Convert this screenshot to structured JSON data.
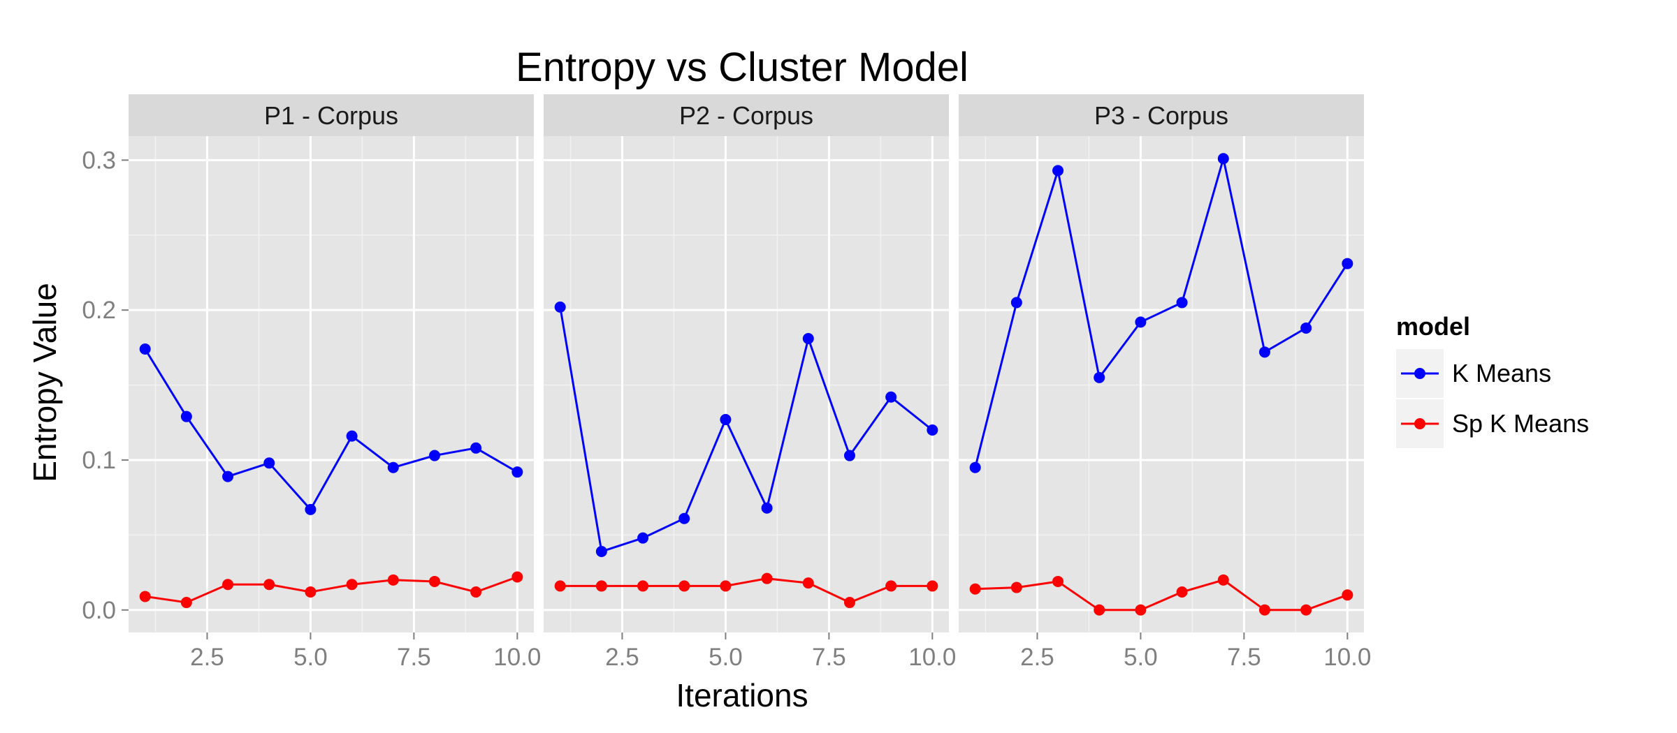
{
  "chart_data": {
    "type": "line",
    "title": "Entropy vs Cluster Model",
    "xlabel": "Iterations",
    "ylabel": "Entropy Value",
    "xlim": [
      0.6,
      10.4
    ],
    "ylim": [
      -0.015,
      0.316
    ],
    "x_ticks": [
      2.5,
      5.0,
      7.5,
      10.0
    ],
    "x_tick_labels": [
      "2.5",
      "5.0",
      "7.5",
      "10.0"
    ],
    "y_ticks": [
      0.0,
      0.1,
      0.2,
      0.3
    ],
    "y_tick_labels": [
      "0.0",
      "0.1",
      "0.2",
      "0.3"
    ],
    "grid": true,
    "legend": {
      "title": "model",
      "position": "right",
      "entries": [
        {
          "label": "K Means",
          "color": "#0000ff"
        },
        {
          "label": "Sp K Means",
          "color": "#ff0000"
        }
      ]
    },
    "colors": {
      "K Means": "#0000ff",
      "Sp K Means": "#ff0000"
    },
    "x": [
      1,
      2,
      3,
      4,
      5,
      6,
      7,
      8,
      9,
      10
    ],
    "panels": [
      {
        "label": "P1 - Corpus",
        "series": [
          {
            "name": "K Means",
            "values": [
              0.174,
              0.129,
              0.089,
              0.098,
              0.067,
              0.116,
              0.095,
              0.103,
              0.108,
              0.092
            ]
          },
          {
            "name": "Sp K Means",
            "values": [
              0.009,
              0.005,
              0.017,
              0.017,
              0.012,
              0.017,
              0.02,
              0.019,
              0.012,
              0.022
            ]
          }
        ]
      },
      {
        "label": "P2 - Corpus",
        "series": [
          {
            "name": "K Means",
            "values": [
              0.202,
              0.039,
              0.048,
              0.061,
              0.127,
              0.068,
              0.181,
              0.103,
              0.142,
              0.12
            ]
          },
          {
            "name": "Sp K Means",
            "values": [
              0.016,
              0.016,
              0.016,
              0.016,
              0.016,
              0.021,
              0.018,
              0.005,
              0.016,
              0.016
            ]
          }
        ]
      },
      {
        "label": "P3 - Corpus",
        "series": [
          {
            "name": "K Means",
            "values": [
              0.095,
              0.205,
              0.293,
              0.155,
              0.192,
              0.205,
              0.301,
              0.172,
              0.188,
              0.231
            ]
          },
          {
            "name": "Sp K Means",
            "values": [
              0.014,
              0.015,
              0.019,
              0.0,
              0.0,
              0.012,
              0.02,
              0.0,
              0.0,
              0.01
            ]
          }
        ]
      }
    ]
  }
}
